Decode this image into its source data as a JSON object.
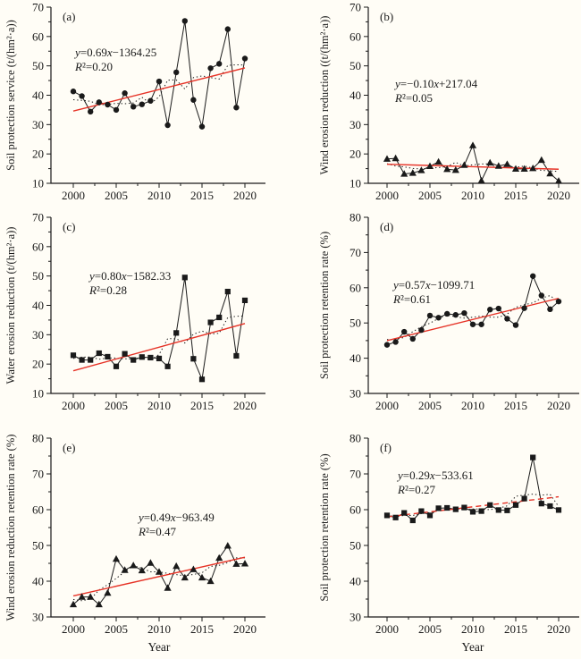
{
  "figure": {
    "xlabel": "Year",
    "x_tick_labels": [
      "2000",
      "2005",
      "2010",
      "2015",
      "2020"
    ],
    "colors": {
      "trend_red": "#e63226",
      "series_black": "#1a1a1a",
      "background": "#fffdf6"
    }
  },
  "chart_data": [
    {
      "type": "line",
      "panel_label": "(a)",
      "ylabel": "Soil protection service (t/(hm²·a))",
      "xlabel": "",
      "ylim": [
        10,
        70
      ],
      "ytick_interval": 10,
      "marker": "circle",
      "equation": "y=0.69x−1364.25",
      "r_squared": "R²=0.20",
      "legend": "none",
      "grid": false,
      "x": [
        2000,
        2001,
        2002,
        2003,
        2004,
        2005,
        2006,
        2007,
        2008,
        2009,
        2010,
        2011,
        2012,
        2013,
        2014,
        2015,
        2016,
        2017,
        2018,
        2019,
        2020
      ],
      "values": [
        41.3,
        39.7,
        34.4,
        37.6,
        36.8,
        35.0,
        40.7,
        36.1,
        36.9,
        38.1,
        44.7,
        29.8,
        47.8,
        65.3,
        38.4,
        29.3,
        49.2,
        50.7,
        62.5,
        35.8,
        52.5
      ],
      "trend": {
        "start": 34.6,
        "end": 49.3,
        "style": "solid"
      },
      "eq_pos": {
        "x": 84,
        "y": 63
      }
    },
    {
      "type": "line",
      "panel_label": "(b)",
      "ylabel": "Wind erosion reduction ((t/(hm²·a))",
      "xlabel": "",
      "ylim": [
        10,
        70
      ],
      "ytick_interval": 10,
      "marker": "triangle",
      "equation": "y=−0.10x+217.04",
      "r_squared": "R²=0.05",
      "legend": "none",
      "grid": false,
      "x": [
        2000,
        2001,
        2002,
        2003,
        2004,
        2005,
        2006,
        2007,
        2008,
        2009,
        2010,
        2011,
        2012,
        2013,
        2014,
        2015,
        2016,
        2017,
        2018,
        2019,
        2020
      ],
      "values": [
        18.3,
        18.5,
        13.2,
        13.5,
        14.4,
        15.8,
        17.3,
        14.8,
        14.5,
        16.2,
        22.9,
        10.9,
        17.0,
        15.9,
        16.5,
        14.9,
        14.9,
        15.1,
        17.9,
        13.3,
        10.8
      ],
      "trend": {
        "start": 16.5,
        "end": 14.8,
        "style": "solid"
      },
      "eq_pos": {
        "x": 117,
        "y": 98
      }
    },
    {
      "type": "line",
      "panel_label": "(c)",
      "ylabel": "Water erosion reduction (t/(hm²·a))",
      "xlabel": "",
      "ylim": [
        10,
        70
      ],
      "ytick_interval": 10,
      "marker": "square",
      "equation": "y=0.80x−1582.33",
      "r_squared": "R²=0.28",
      "legend": "none",
      "grid": false,
      "x": [
        2000,
        2001,
        2002,
        2003,
        2004,
        2005,
        2006,
        2007,
        2008,
        2009,
        2010,
        2011,
        2012,
        2013,
        2014,
        2015,
        2016,
        2017,
        2018,
        2019,
        2020
      ],
      "values": [
        23.0,
        21.4,
        21.4,
        23.7,
        22.5,
        19.2,
        23.5,
        21.4,
        22.4,
        22.2,
        21.9,
        19.2,
        30.6,
        49.5,
        21.8,
        14.8,
        34.2,
        35.9,
        44.7,
        22.8,
        41.7
      ],
      "trend": {
        "start": 17.7,
        "end": 33.8,
        "style": "solid"
      },
      "eq_pos": {
        "x": 100,
        "y": 78
      }
    },
    {
      "type": "line",
      "panel_label": "(d)",
      "ylabel": "Soil protection retention rate (%)",
      "xlabel": "",
      "ylim": [
        30,
        80
      ],
      "ytick_interval": 10,
      "marker": "circle",
      "equation": "y=0.57x−1099.71",
      "r_squared": "R²=0.61",
      "legend": "none",
      "grid": false,
      "x": [
        2000,
        2001,
        2002,
        2003,
        2004,
        2005,
        2006,
        2007,
        2008,
        2009,
        2010,
        2011,
        2012,
        2013,
        2014,
        2015,
        2016,
        2017,
        2018,
        2019,
        2020
      ],
      "values": [
        43.8,
        44.6,
        47.5,
        45.5,
        48.0,
        52.1,
        51.5,
        52.6,
        52.3,
        52.8,
        49.6,
        49.6,
        53.8,
        54.1,
        51.2,
        49.4,
        54.2,
        63.3,
        57.8,
        53.9,
        56.1
      ],
      "trend": {
        "start": 45.0,
        "end": 57.0,
        "style": "solid"
      },
      "eq_pos": {
        "x": 115,
        "y": 88
      }
    },
    {
      "type": "line",
      "panel_label": "(e)",
      "ylabel": "Wind erosion reduction retention rate (%)",
      "xlabel": "Year",
      "ylim": [
        30,
        80
      ],
      "ytick_interval": 10,
      "marker": "triangle",
      "equation": "y=0.49x−963.49",
      "r_squared": "R²=0.47",
      "legend": "none",
      "grid": false,
      "x": [
        2000,
        2001,
        2002,
        2003,
        2004,
        2005,
        2006,
        2007,
        2008,
        2009,
        2010,
        2011,
        2012,
        2013,
        2014,
        2015,
        2016,
        2017,
        2018,
        2019,
        2020
      ],
      "values": [
        33.5,
        35.6,
        35.6,
        33.5,
        36.7,
        46.2,
        43.1,
        44.4,
        43.0,
        45.1,
        42.6,
        38.1,
        44.2,
        41.0,
        43.3,
        41.0,
        40.0,
        46.5,
        49.9,
        44.8,
        44.9
      ],
      "trend": {
        "start": 35.9,
        "end": 46.7,
        "style": "solid"
      },
      "eq_pos": {
        "x": 155,
        "y": 113
      }
    },
    {
      "type": "line",
      "panel_label": "(f)",
      "ylabel": "Soil protection retention rate (%)",
      "xlabel": "Year",
      "ylim": [
        30,
        80
      ],
      "ytick_interval": 10,
      "marker": "square",
      "equation": "y=0.29x−533.61",
      "r_squared": "R²=0.27",
      "legend": "none",
      "grid": false,
      "x": [
        2000,
        2001,
        2002,
        2003,
        2004,
        2005,
        2006,
        2007,
        2008,
        2009,
        2010,
        2011,
        2012,
        2013,
        2014,
        2015,
        2016,
        2017,
        2018,
        2019,
        2020
      ],
      "values": [
        58.4,
        57.8,
        59.1,
        57.0,
        59.6,
        58.4,
        60.4,
        60.5,
        60.1,
        60.6,
        59.4,
        59.6,
        61.3,
        59.9,
        59.8,
        61.3,
        63.1,
        74.6,
        61.7,
        61.0,
        59.9
      ],
      "trend": {
        "start": 58.0,
        "end": 63.6,
        "style": "dashed"
      },
      "eq_pos": {
        "x": 120,
        "y": 66
      }
    }
  ]
}
